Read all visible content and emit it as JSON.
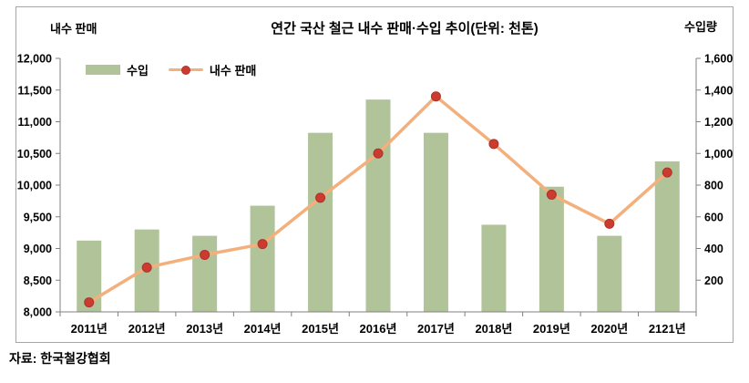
{
  "chart_data": {
    "type": "bar",
    "subtype": "combo-bar-line-dual-axis",
    "title": "연간 국산 철근 내수 판매·수입 추이(단위: 천톤)",
    "source": "자료: 한국철강협회",
    "categories": [
      "2011년",
      "2012년",
      "2013년",
      "2014년",
      "2015년",
      "2016년",
      "2017년",
      "2018년",
      "2019년",
      "2020년",
      "2121년"
    ],
    "left_axis": {
      "title": "내수 판매",
      "min": 8000,
      "max": 12000,
      "step": 500,
      "tick_labels": [
        "12,000",
        "11,500",
        "11,000",
        "10,500",
        "10,000",
        "9,500",
        "9,000",
        "8,500",
        "8,000"
      ]
    },
    "right_axis": {
      "title": "수입량",
      "min": 0,
      "max": 1600,
      "step": 200,
      "tick_labels": [
        "1,600",
        "1,400",
        "1,200",
        "1,000",
        "800",
        "600",
        "400",
        "200"
      ]
    },
    "series": [
      {
        "name": "수입",
        "type": "bar",
        "axis": "right",
        "color": "#b1c398",
        "values": [
          450,
          520,
          480,
          670,
          1130,
          1340,
          1130,
          550,
          790,
          480,
          950
        ]
      },
      {
        "name": "내수 판매",
        "type": "line",
        "axis": "left",
        "line_color": "#f3b07c",
        "marker_color": "#cc3a30",
        "values": [
          8150,
          8700,
          8900,
          9070,
          9800,
          10500,
          11400,
          10650,
          9850,
          9390,
          10200
        ]
      }
    ],
    "legend": {
      "position": "top-left-inside"
    },
    "grid": "off",
    "colors": {
      "axis_line": "#808080",
      "frame_border": "#a6a6a6",
      "text": "#000000"
    }
  }
}
